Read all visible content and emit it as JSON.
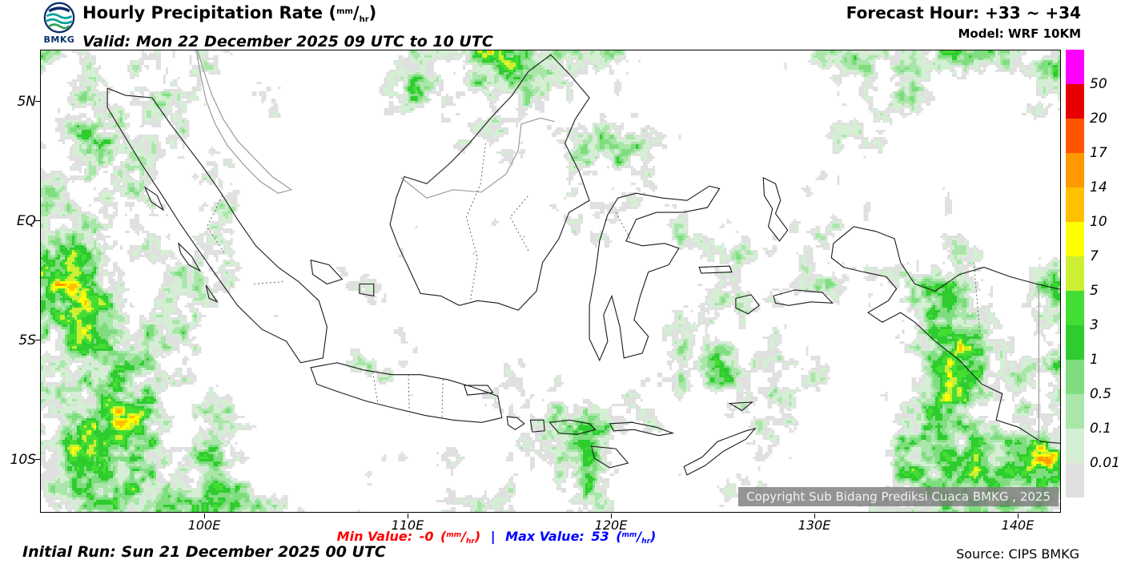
{
  "header": {
    "logo_text": "BMKG",
    "title": "Hourly Precipitation Rate",
    "valid": "Valid: Mon 22 December 2025 09 UTC to 10 UTC",
    "forecast_hour": "Forecast Hour: +33 ~ +34",
    "model": "Model: WRF 10KM"
  },
  "unit": {
    "open": "(",
    "sup": "mm",
    "slash": "/",
    "sub": "hr",
    "close": ")"
  },
  "map": {
    "lat_labels": [
      "5N",
      "EQ",
      "5S",
      "10S"
    ],
    "lon_labels": [
      "100E",
      "110E",
      "120E",
      "130E",
      "140E"
    ],
    "watermark": "Copyright Sub Bidang Prediksi Cuaca BMKG , 2025"
  },
  "legend": {
    "labels": [
      "50",
      "20",
      "17",
      "14",
      "10",
      "7",
      "5",
      "3",
      "1",
      "0.5",
      "0.1",
      "0.01"
    ],
    "colors": [
      "#FF00FF",
      "#E80000",
      "#FF5500",
      "#FF9900",
      "#FFC000",
      "#FFFF00",
      "#CCEE33",
      "#44DD33",
      "#2ECC2E",
      "#7FDD7F",
      "#AAE6AA",
      "#D4EFD4",
      "#E0E0E0"
    ]
  },
  "footer": {
    "min_label": "Min Value:",
    "min_value": "-0",
    "separator": "|",
    "max_label": "Max Value:",
    "max_value": "53",
    "initial_run": "Initial Run: Sun 21 December 2025 00 UTC",
    "source": "Source: CIPS BMKG"
  },
  "colors": {
    "min_value_color": "#FF0000",
    "max_value_color": "#0000FF",
    "logo_navy": "#0A2F6B",
    "logo_teal": "#00A09A",
    "logo_green": "#35A554"
  }
}
